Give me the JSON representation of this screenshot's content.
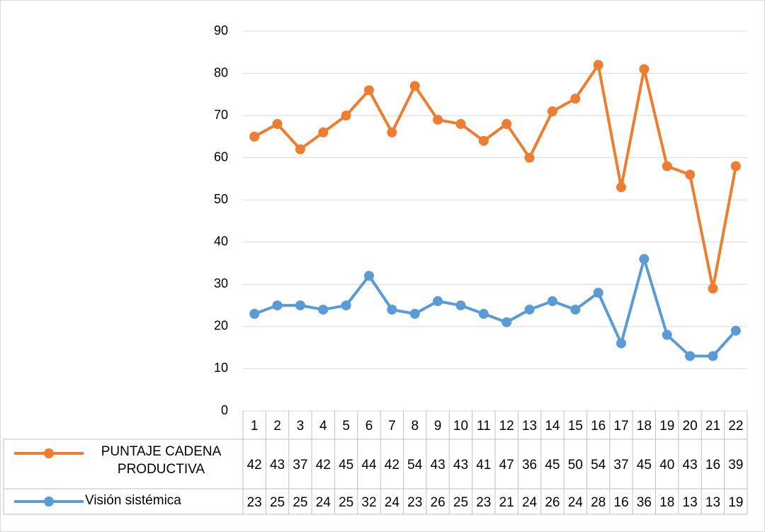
{
  "chart_data": {
    "type": "line",
    "stacked": true,
    "categories": [
      "1",
      "2",
      "3",
      "4",
      "5",
      "6",
      "7",
      "8",
      "9",
      "10",
      "11",
      "12",
      "13",
      "14",
      "15",
      "16",
      "17",
      "18",
      "19",
      "20",
      "21",
      "22"
    ],
    "series": [
      {
        "name": "PUNTAJE CADENA PRODUCTIVA",
        "color": "#ed7d31",
        "values": [
          42,
          43,
          37,
          42,
          45,
          44,
          42,
          54,
          43,
          43,
          41,
          47,
          36,
          45,
          50,
          54,
          37,
          45,
          40,
          43,
          16,
          39
        ]
      },
      {
        "name": "Visión sistémica",
        "color": "#5b9bd5",
        "values": [
          23,
          25,
          25,
          24,
          25,
          32,
          24,
          23,
          26,
          25,
          23,
          21,
          24,
          26,
          24,
          28,
          16,
          36,
          18,
          13,
          13,
          19
        ]
      }
    ],
    "ylim": [
      0,
      90
    ],
    "yticks": [
      0,
      10,
      20,
      30,
      40,
      50,
      60,
      70,
      80,
      90
    ],
    "grid": true,
    "data_table": true
  }
}
